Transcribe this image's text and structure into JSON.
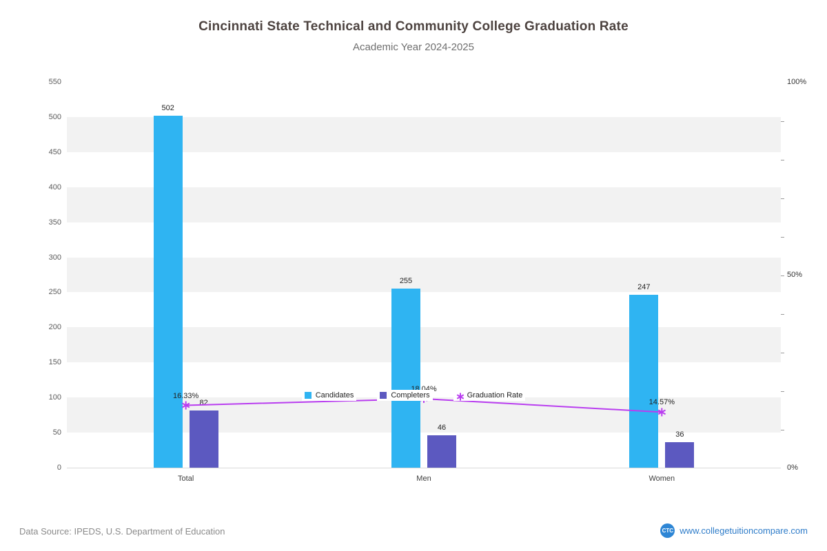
{
  "header": {
    "title": "Cincinnati State Technical and Community College Graduation Rate",
    "subtitle": "Academic Year 2024-2025"
  },
  "chart_data": {
    "type": "bar",
    "title": "Cincinnati State Technical and Community College Graduation Rate",
    "subtitle": "Academic Year 2024-2025",
    "categories": [
      "Total",
      "Men",
      "Women"
    ],
    "series": [
      {
        "name": "Candidates",
        "type": "bar",
        "color": "#2fb4f2",
        "values": [
          502,
          255,
          247
        ]
      },
      {
        "name": "Completers",
        "type": "bar",
        "color": "#5c59c0",
        "values": [
          82,
          46,
          36
        ]
      },
      {
        "name": "Graduation Rate",
        "type": "line",
        "color": "#b93df0",
        "values_pct": [
          16.33,
          18.04,
          14.57
        ],
        "point_labels": [
          "16.33%",
          "18.04%",
          "14.57%"
        ]
      }
    ],
    "left_axis": {
      "min": 0,
      "max": 550,
      "step": 50,
      "ticks": [
        0,
        50,
        100,
        150,
        200,
        250,
        300,
        350,
        400,
        450,
        500,
        550
      ]
    },
    "right_axis": {
      "min": 0,
      "max": 100,
      "minor_tick_step_pct": 10,
      "labels": [
        {
          "label": "0%",
          "pct": 0
        },
        {
          "label": "50%",
          "pct": 50
        },
        {
          "label": "100%",
          "pct": 100
        }
      ]
    },
    "stripe_colors": {
      "odd": "#f2f2f2",
      "even": "#ffffff"
    },
    "legend": [
      "Candidates",
      "Completers",
      "Graduation Rate"
    ],
    "legend_position": "bottom",
    "grid": "horizontal-bands"
  },
  "legend": {
    "candidates": "Candidates",
    "completers": "Completers",
    "graduation_rate": "Graduation Rate"
  },
  "footer": {
    "source": "Data Source: IPEDS, U.S. Department of Education",
    "logo_text": "CTC",
    "site": "www.collegetuitioncompare.com"
  }
}
